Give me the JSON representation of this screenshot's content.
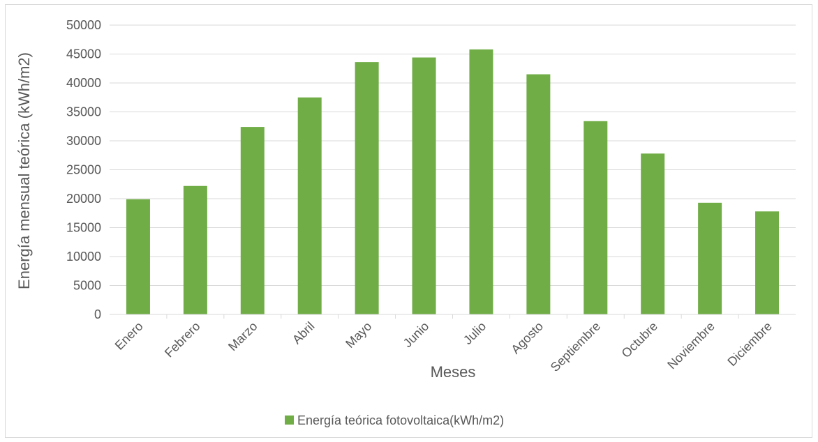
{
  "chart_data": {
    "type": "bar",
    "categories": [
      "Enero",
      "Febrero",
      "Marzo",
      "Abril",
      "Mayo",
      "Junio",
      "Julio",
      "Agosto",
      "Septiembre",
      "Octubre",
      "Noviembre",
      "Diciembre"
    ],
    "series": [
      {
        "name": "Energía teórica fotovoltaica(kWh/m2)",
        "values": [
          19900,
          22200,
          32400,
          37500,
          43600,
          44400,
          45800,
          41500,
          33400,
          27800,
          19300,
          17800
        ],
        "color": "#70ad47"
      }
    ],
    "xlabel": "Meses",
    "ylabel": "Energía mensual teórica (kWh/m2)",
    "ylim": [
      0,
      50000
    ],
    "yticks": [
      0,
      5000,
      10000,
      15000,
      20000,
      25000,
      30000,
      35000,
      40000,
      45000,
      50000
    ],
    "grid": true,
    "legend_position": "bottom",
    "gridline_color": "#d9d9d9"
  }
}
